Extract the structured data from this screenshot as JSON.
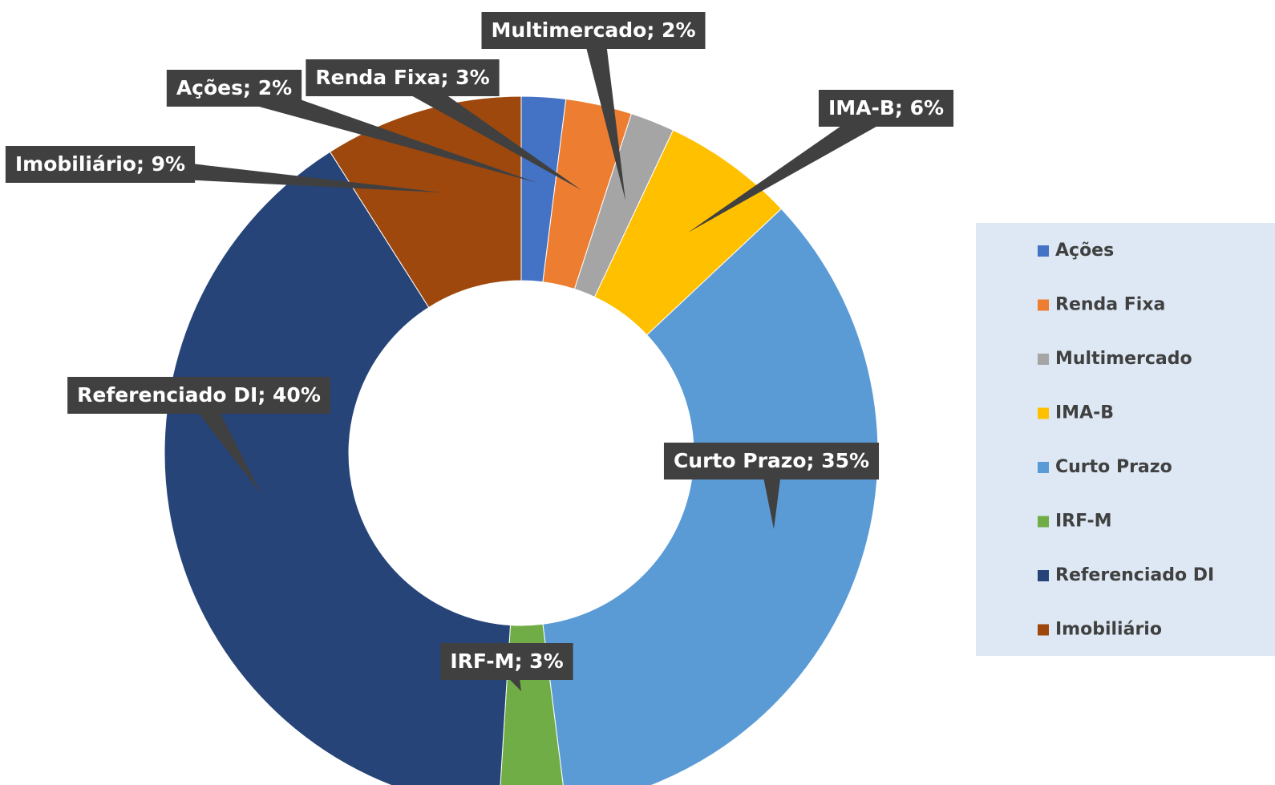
{
  "chart_data": {
    "type": "donut",
    "categories": [
      "Ações",
      "Renda Fixa",
      "Multimercado",
      "IMA-B",
      "Curto Prazo",
      "IRF-M",
      "Referenciado DI",
      "Imobiliário"
    ],
    "values": [
      2,
      3,
      2,
      6,
      35,
      3,
      40,
      9
    ],
    "value_labels": [
      "Ações; 2%",
      "Renda Fixa; 3%",
      "Multimercado; 2%",
      "IMA-B; 6%",
      "Curto Prazo; 35%",
      "IRF-M; 3%",
      "Referenciado DI; 40%",
      "Imobiliário; 9%"
    ],
    "colors": [
      "#4472c4",
      "#ed7d31",
      "#a5a5a5",
      "#ffc000",
      "#5b9bd5",
      "#70ad47",
      "#264478",
      "#9e480e"
    ],
    "legend": "right"
  }
}
